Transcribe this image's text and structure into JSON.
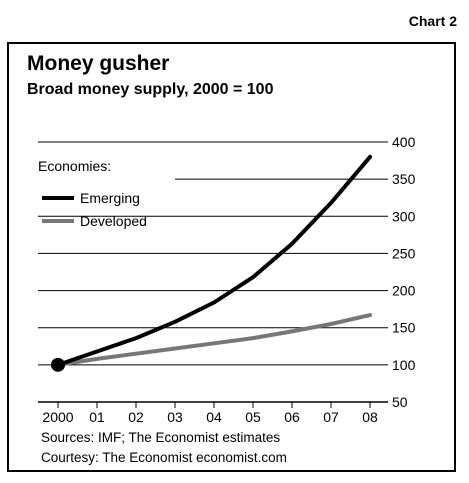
{
  "chart_label": "Chart 2",
  "source_text": "Sources: IMF; The Economist estimates",
  "courtesy_text": "Courtesy: The Economist economist.com",
  "colors": {
    "emerging": "#000000",
    "developed": "#777777",
    "grid": "#000000"
  },
  "chart_data": {
    "type": "line",
    "title": "Money gusher",
    "subtitle": "Broad money supply, 2000 = 100",
    "legend_title": "Economies:",
    "legend_position": "top-left",
    "x_ticks": [
      "2000",
      "01",
      "02",
      "03",
      "04",
      "05",
      "06",
      "07",
      "08"
    ],
    "y_ticks": [
      50,
      100,
      150,
      200,
      250,
      300,
      350,
      400
    ],
    "ylim": [
      50,
      400
    ],
    "y_axis_side": "right",
    "grid": true,
    "series": [
      {
        "name": "Emerging",
        "x": [
          2000,
          2001,
          2002,
          2003,
          2004,
          2005,
          2006,
          2007,
          2008
        ],
        "values": [
          100,
          118,
          136,
          158,
          184,
          218,
          263,
          318,
          380
        ]
      },
      {
        "name": "Developed",
        "x": [
          2000,
          2001,
          2002,
          2003,
          2004,
          2005,
          2006,
          2007,
          2008
        ],
        "values": [
          100,
          108,
          115,
          122,
          129,
          136,
          145,
          155,
          167
        ]
      }
    ]
  }
}
